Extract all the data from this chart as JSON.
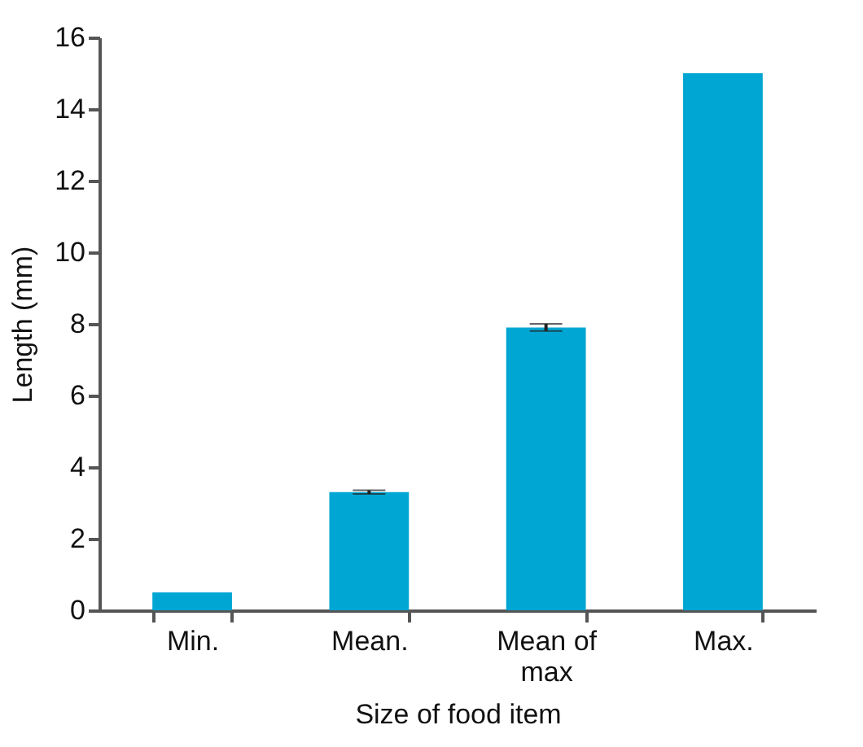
{
  "chart_data": {
    "type": "bar",
    "xlabel": "Size of food item",
    "ylabel": "Length (mm)",
    "categories": [
      "Min.",
      "Mean.",
      "Mean of max",
      "Max."
    ],
    "values": [
      0.5,
      3.3,
      7.9,
      15
    ],
    "errors": [
      null,
      0.05,
      0.1,
      null
    ],
    "color": "#00a6d3",
    "ylim": [
      0,
      16
    ],
    "yticks": [
      0,
      2,
      4,
      6,
      8,
      10,
      12,
      14,
      16
    ],
    "grid": false
  }
}
